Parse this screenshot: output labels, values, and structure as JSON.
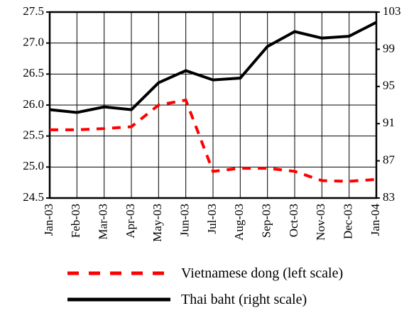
{
  "chart_data": {
    "type": "line",
    "categories": [
      "Jan-03",
      "Feb-03",
      "Mar-03",
      "Apr-03",
      "May-03",
      "Jun-03",
      "Jul-03",
      "Aug-03",
      "Sep-03",
      "Oct-03",
      "Nov-03",
      "Dec-03",
      "Jan-04"
    ],
    "series": [
      {
        "name": "Vietnamese dong (left scale)",
        "color": "#ff0000",
        "dash": true,
        "values": [
          25.6,
          25.6,
          25.62,
          25.65,
          26.0,
          26.08,
          24.93,
          24.98,
          24.98,
          24.93,
          24.78,
          24.77,
          24.8
        ]
      },
      {
        "name": "Thai baht (right scale)",
        "color": "#000000",
        "axis": "y2",
        "values": [
          92.5,
          92.2,
          92.8,
          92.5,
          95.4,
          96.7,
          95.7,
          95.9,
          99.3,
          100.9,
          100.2,
          100.4,
          101.9
        ]
      }
    ],
    "ylim": [
      24.5,
      27.5
    ],
    "yticks": [
      {
        "value": 24.5,
        "label": "24.5"
      },
      {
        "value": 25,
        "label": "25.0"
      },
      {
        "value": 25.5,
        "label": "25.5"
      },
      {
        "value": 26,
        "label": "26.0"
      },
      {
        "value": 26.5,
        "label": "26.5"
      },
      {
        "value": 27,
        "label": "27.0"
      },
      {
        "value": 27.5,
        "label": "27.5"
      }
    ],
    "y2lim": [
      83,
      103
    ],
    "y2ticks": [
      83,
      87,
      91,
      95,
      99,
      103
    ],
    "grid": true
  }
}
